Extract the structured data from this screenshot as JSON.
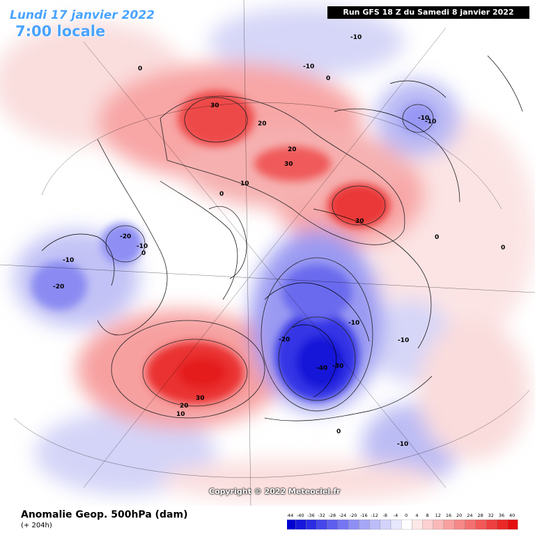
{
  "header": {
    "date": "Lundi 17 janvier 2022",
    "time": "7:00 locale",
    "run": "Run GFS 18 Z du Samedi 8 janvier 2022"
  },
  "map": {
    "contour_labels": [
      "30",
      "20",
      "20",
      "30",
      "30",
      "10",
      "0",
      "0",
      "-10",
      "-10",
      "0",
      "-10",
      "-20",
      "-10",
      "0",
      "-10",
      "-20",
      "-10",
      "-20",
      "-40",
      "-30",
      "-10",
      "-10",
      "-10",
      "20",
      "30",
      "10",
      "0",
      "0",
      "0"
    ]
  },
  "copyright": "Copyright © 2022 Meteociel.fr",
  "footer": {
    "title": "Anomalie Geop. 500hPa (dam)",
    "subtitle": "(+ 204h)"
  },
  "scale": {
    "labels": [
      "-44",
      "-40",
      "-36",
      "-32",
      "-28",
      "-24",
      "-20",
      "-16",
      "-12",
      "-8",
      "-4",
      "0",
      "4",
      "8",
      "12",
      "16",
      "20",
      "24",
      "28",
      "32",
      "36",
      "40"
    ],
    "colors": [
      "#0000d0",
      "#1616dc",
      "#2c2ce4",
      "#4646ea",
      "#5e5eee",
      "#7676f2",
      "#8e8ef4",
      "#a6a6f6",
      "#bcbcf8",
      "#d2d2fa",
      "#e6e6fc",
      "#ffffff",
      "#fde6e6",
      "#fcd0d0",
      "#fab8b8",
      "#f8a0a0",
      "#f68888",
      "#f47070",
      "#f25858",
      "#ee4040",
      "#ea2828",
      "#e41010"
    ]
  }
}
